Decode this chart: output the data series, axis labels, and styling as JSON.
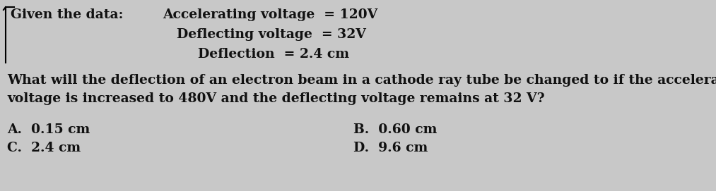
{
  "background_color": "#c8c8c8",
  "given_label": "Given the data:",
  "line1": "Accelerating voltage  = 120V",
  "line2": "Deflecting voltage  = 32V",
  "line3": "Deflection  = 2.4 cm",
  "question_line1": "What will the deflection of an electron beam in a cathode ray tube be changed to if the accelerating",
  "question_line2": "voltage is increased to 480V and the deflecting voltage remains at 32 V?",
  "optA": "A.  0.15 cm",
  "optB": "B.  0.60 cm",
  "optC": "C.  2.4 cm",
  "optD": "D.  9.6 cm",
  "font_size": 13.5,
  "text_color": "#111111"
}
